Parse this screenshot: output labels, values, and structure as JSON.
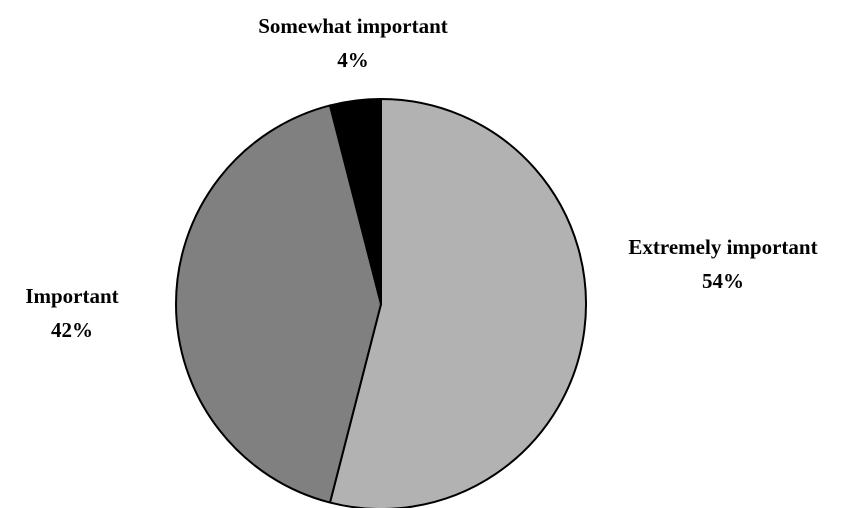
{
  "chart_data": {
    "type": "pie",
    "title": "",
    "start_angle_deg": 0,
    "direction": "clockwise",
    "slices": [
      {
        "label": "Extremely important",
        "value": 54,
        "value_label": "54%",
        "color": "#b2b2b2"
      },
      {
        "label": "Important",
        "value": 42,
        "value_label": "42%",
        "color": "#808080"
      },
      {
        "label": "Somewhat important",
        "value": 4,
        "value_label": "4%",
        "color": "#000000"
      }
    ],
    "legend": "none",
    "outline_color": "#000000"
  }
}
